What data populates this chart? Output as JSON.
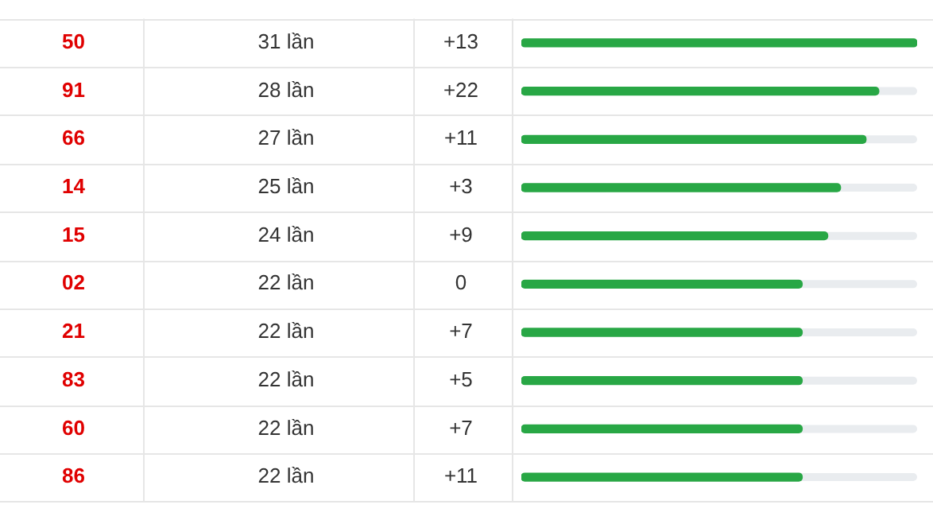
{
  "chart_data": {
    "type": "bar",
    "orientation": "horizontal",
    "categories": [
      "50",
      "91",
      "66",
      "14",
      "15",
      "02",
      "21",
      "83",
      "60",
      "86"
    ],
    "values": [
      31,
      28,
      27,
      25,
      24,
      22,
      22,
      22,
      22,
      22
    ],
    "value_labels": [
      "31 lần",
      "28 lần",
      "27 lần",
      "25 lần",
      "24 lần",
      "22 lần",
      "22 lần",
      "22 lần",
      "22 lần",
      "22 lần"
    ],
    "annotations": [
      "+13",
      "+22",
      "+11",
      "+3",
      "+9",
      "0",
      "+7",
      "+5",
      "+7",
      "+11"
    ],
    "color": "#28a745",
    "xlim": [
      0,
      31
    ],
    "tick_labels": "y",
    "grid": false,
    "legend": false
  }
}
